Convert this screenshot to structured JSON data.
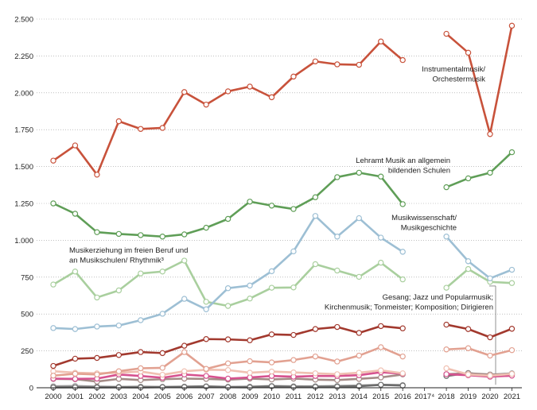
{
  "chart_data": {
    "type": "line",
    "title": "",
    "xlabel": "",
    "ylabel": "",
    "ylim": [
      0,
      2500
    ],
    "yticks": [
      0,
      250,
      500,
      750,
      1000,
      1250,
      1500,
      1750,
      2000,
      2250,
      2500
    ],
    "ytick_labels": [
      "0",
      "250",
      "500",
      "750",
      "1.000",
      "1.250",
      "1.500",
      "1.750",
      "2.000",
      "2.250",
      "2.500"
    ],
    "categories": [
      "2000",
      "2001",
      "2002",
      "2003",
      "2004",
      "2005",
      "2006",
      "2007",
      "2008",
      "2009",
      "2010",
      "2011",
      "2012",
      "2013",
      "2014",
      "2015",
      "2016",
      "2017",
      "2018",
      "2019",
      "2020",
      "2021"
    ],
    "category_labels": [
      "2000",
      "2001",
      "2002",
      "2003",
      "2004",
      "2005",
      "2006",
      "2007",
      "2008",
      "2009",
      "2010",
      "2011",
      "2012",
      "2013",
      "2014",
      "2015",
      "2016",
      "2017⁴",
      "2018",
      "2019",
      "2020",
      "2021"
    ],
    "grid": true,
    "series": [
      {
        "name": "Instrumentalmusik/ Orchestermusik",
        "color": "#c8523b",
        "values": [
          1540,
          1643,
          1445,
          1807,
          1755,
          1762,
          2005,
          1920,
          2010,
          2042,
          1970,
          2110,
          2213,
          2193,
          2190,
          2348,
          2222,
          null,
          2400,
          2272,
          1720,
          2455
        ]
      },
      {
        "name": "Lehramt Musik an allgemein bildenden Schulen",
        "color": "#5f9e57",
        "values": [
          1250,
          1180,
          1055,
          1043,
          1035,
          1025,
          1040,
          1085,
          1145,
          1262,
          1235,
          1212,
          1292,
          1428,
          1458,
          1432,
          1245,
          null,
          1360,
          1420,
          1458,
          1597
        ]
      },
      {
        "name": "Musikwissenschaft/ Musikgeschichte",
        "color": "#9dbfd4",
        "values": [
          405,
          398,
          415,
          422,
          458,
          502,
          603,
          532,
          675,
          693,
          790,
          925,
          1165,
          1025,
          1150,
          1018,
          922,
          null,
          1025,
          858,
          742,
          800
        ]
      },
      {
        "name": "Musikerziehung im freien Beruf und an Musikschulen/ Rhythmik³",
        "color": "#a9cf9e",
        "values": [
          700,
          788,
          612,
          660,
          775,
          788,
          862,
          583,
          555,
          605,
          678,
          680,
          838,
          795,
          752,
          848,
          735,
          null,
          678,
          805,
          718,
          710
        ]
      },
      {
        "name": "Gesang; Jazz und Popularmusik; Kirchenmusik; Tonmeister; Komposition; Dirigieren",
        "color": "#a2392e",
        "values": [
          148,
          197,
          202,
          222,
          242,
          235,
          285,
          330,
          328,
          322,
          362,
          358,
          398,
          412,
          372,
          418,
          403,
          null,
          428,
          398,
          342,
          400
        ]
      },
      {
        "name": "Gesang",
        "color": "#e2a191",
        "values": [
          82,
          95,
          90,
          112,
          132,
          135,
          242,
          128,
          165,
          180,
          172,
          188,
          212,
          178,
          218,
          275,
          212,
          null,
          260,
          268,
          218,
          255
        ]
      },
      {
        "name": "Jazz und Popularmusik",
        "color": "#f0c0b2",
        "values": [
          112,
          102,
          98,
          102,
          110,
          88,
          112,
          122,
          120,
          102,
          110,
          104,
          98,
          92,
          102,
          118,
          98,
          null,
          132,
          90,
          82,
          94
        ]
      },
      {
        "name": "Kirchenmusik",
        "color": "#d6528f",
        "values": [
          62,
          60,
          62,
          90,
          80,
          68,
          90,
          80,
          62,
          70,
          80,
          75,
          80,
          80,
          85,
          105,
          95,
          null,
          92,
          85,
          75,
          82
        ]
      },
      {
        "name": "Tonmeister",
        "color": "#a58b87",
        "values": [
          60,
          58,
          42,
          60,
          52,
          58,
          62,
          60,
          55,
          62,
          56,
          62,
          55,
          52,
          60,
          70,
          90,
          null,
          92,
          98,
          90,
          92
        ]
      },
      {
        "name": "Komposition",
        "color": "#6c6c6c",
        "values": [
          2,
          3,
          2,
          3,
          2,
          4,
          5,
          8,
          4,
          3,
          10,
          5,
          6,
          7,
          10,
          20,
          15,
          null,
          80,
          100,
          80,
          90
        ]
      },
      {
        "name": "Dirigieren",
        "color": "#9a9a9a",
        "values": [
          10,
          12,
          8,
          6,
          8,
          6,
          8,
          10,
          6,
          8,
          12,
          10,
          10,
          12,
          15,
          20,
          18,
          null,
          90,
          92,
          88,
          98
        ]
      }
    ],
    "annotations": [
      {
        "lines": [
          "Instrumentalmusik/",
          "Orchestermusik"
        ],
        "anchor": "end"
      },
      {
        "lines": [
          "Lehramt Musik an allgemein",
          "bildenden Schulen"
        ],
        "anchor": "end"
      },
      {
        "lines": [
          "Musikwissenschaft/",
          "Musikgeschichte"
        ],
        "anchor": "end"
      },
      {
        "lines": [
          "Musikerziehung im freien Beruf und",
          "an Musikschulen/ Rhythmik³"
        ],
        "anchor": "start"
      },
      {
        "lines": [
          "Gesang; Jazz und Popularmusik;",
          "Kirchenmusik; Tonmeister; Komposition; Dirigieren"
        ],
        "anchor": "end"
      }
    ]
  }
}
